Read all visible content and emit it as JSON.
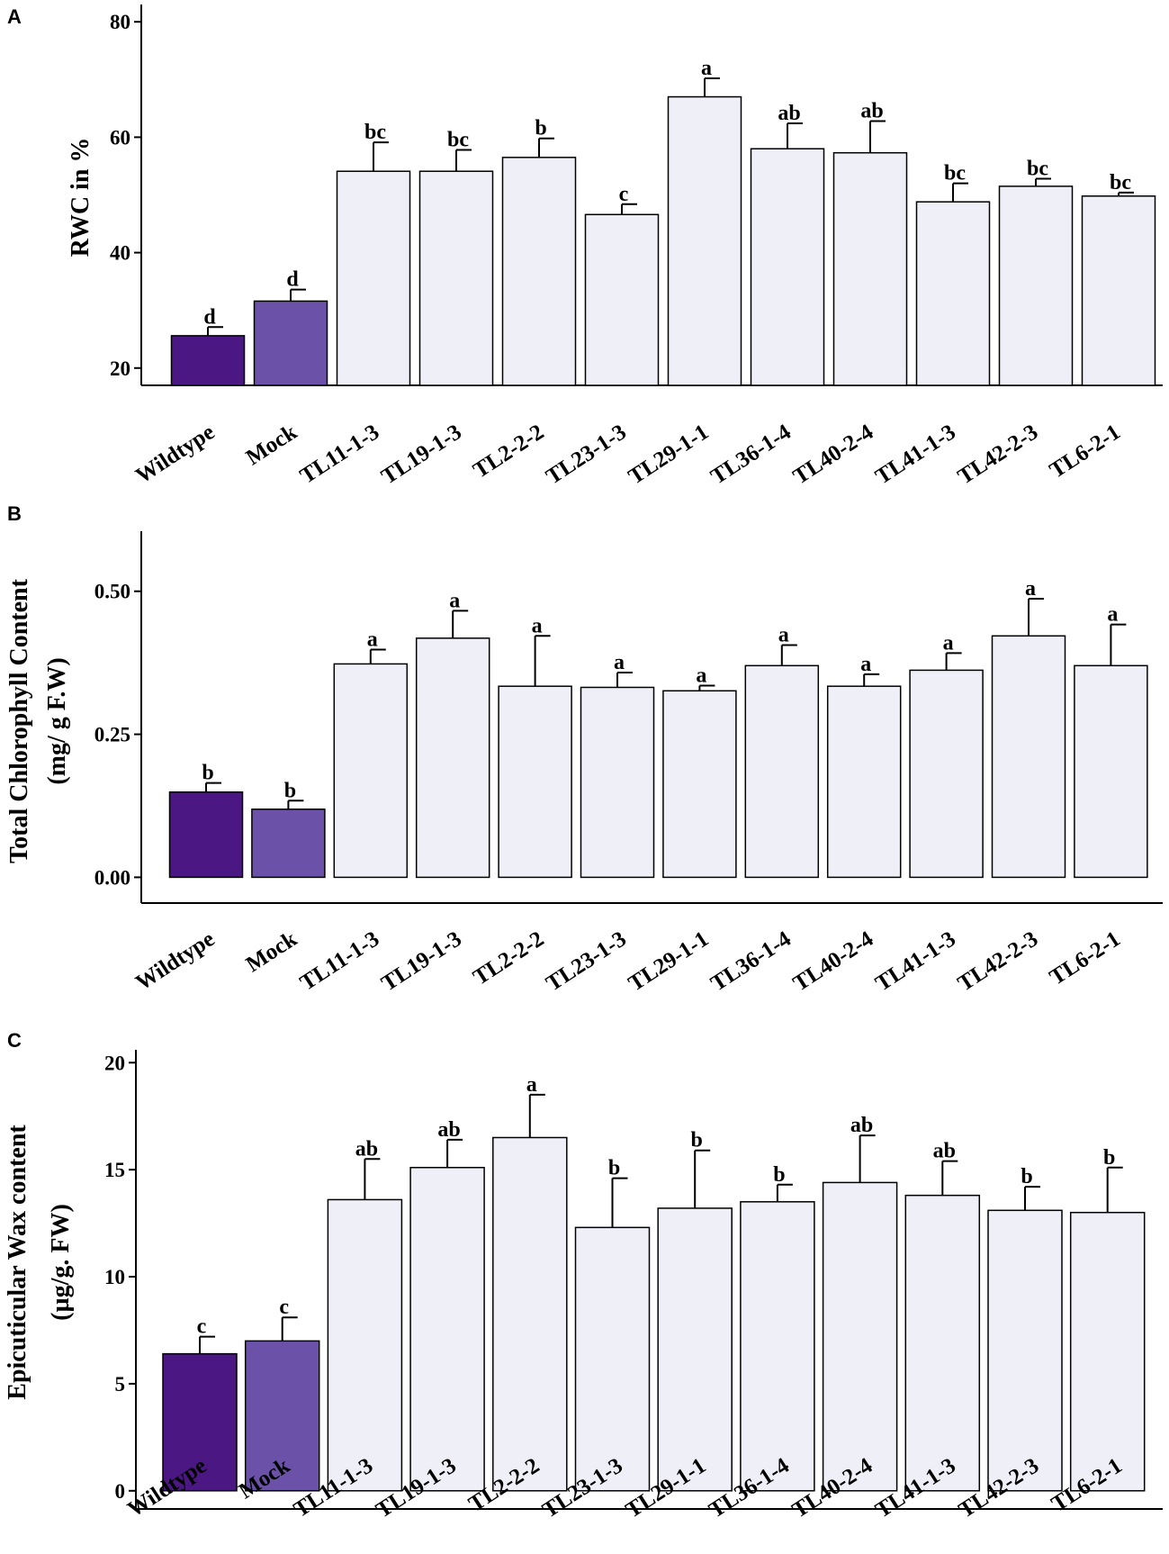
{
  "chart_data": [
    {
      "panel": "A",
      "type": "bar",
      "ylabel": "RWC in %",
      "ylim": [
        17,
        83
      ],
      "yticks": [
        20,
        40,
        60,
        80
      ],
      "tick_format": "int",
      "categories": [
        "Wildtype",
        "Mock",
        "TL11-1-3",
        "TL19-1-3",
        "TL2-2-2",
        "TL23-1-3",
        "TL29-1-1",
        "TL36-1-4",
        "TL40-2-4",
        "TL41-1-3",
        "TL42-2-3",
        "TL6-2-1"
      ],
      "values": [
        25.6,
        31.6,
        54.1,
        54.1,
        56.5,
        46.6,
        67.0,
        58.0,
        57.3,
        48.8,
        51.5,
        49.8
      ],
      "errors": [
        1.5,
        2.0,
        5.0,
        3.7,
        3.3,
        1.8,
        3.2,
        4.4,
        5.5,
        3.2,
        1.3,
        0.6
      ],
      "significance": [
        "d",
        "d",
        "bc",
        "bc",
        "b",
        "c",
        "a",
        "ab",
        "ab",
        "bc",
        "bc",
        "bc"
      ]
    },
    {
      "panel": "B",
      "type": "bar",
      "ylabel": "Total Chlorophyll Content",
      "ylabel2": "(mg/ g F.W)",
      "ylim": [
        -0.045,
        0.605
      ],
      "yticks": [
        0.0,
        0.25,
        0.5
      ],
      "tick_format": "fixed2",
      "categories": [
        "Wildtype",
        "Mock",
        "TL11-1-3",
        "TL19-1-3",
        "TL2-2-2",
        "TL23-1-3",
        "TL29-1-1",
        "TL36-1-4",
        "TL40-2-4",
        "TL41-1-3",
        "TL42-2-3",
        "TL6-2-1"
      ],
      "values": [
        0.149,
        0.119,
        0.373,
        0.418,
        0.334,
        0.332,
        0.326,
        0.37,
        0.334,
        0.362,
        0.422,
        0.37
      ],
      "errors": [
        0.016,
        0.015,
        0.025,
        0.048,
        0.088,
        0.026,
        0.009,
        0.036,
        0.021,
        0.03,
        0.065,
        0.072
      ],
      "significance": [
        "b",
        "b",
        "a",
        "a",
        "a",
        "a",
        "a",
        "a",
        "a",
        "a",
        "a",
        "a"
      ]
    },
    {
      "panel": "C",
      "type": "bar",
      "ylabel": "Epicuticular Wax content",
      "ylabel2": "(µg/g. FW)",
      "ylim": [
        -0.85,
        20.6
      ],
      "yticks": [
        0,
        5,
        10,
        15,
        20
      ],
      "tick_format": "int",
      "categories": [
        "Wildtype",
        "Mock",
        "TL11-1-3",
        "TL19-1-3",
        "TL2-2-2",
        "TL23-1-3",
        "TL29-1-1",
        "TL36-1-4",
        "TL40-2-4",
        "TL41-1-3",
        "TL42-2-3",
        "TL6-2-1"
      ],
      "values": [
        6.4,
        7.0,
        13.6,
        15.1,
        16.5,
        12.3,
        13.2,
        13.5,
        14.4,
        13.8,
        13.1,
        13.0
      ],
      "errors": [
        0.8,
        1.1,
        1.9,
        1.3,
        2.0,
        2.3,
        2.7,
        0.8,
        2.2,
        1.6,
        1.1,
        2.1
      ],
      "significance": [
        "c",
        "c",
        "ab",
        "ab",
        "a",
        "b",
        "b",
        "b",
        "ab",
        "ab",
        "b",
        "b"
      ]
    }
  ],
  "colors": {
    "wildtype": "#4b1782",
    "mock": "#6b52a8",
    "transgenic": "#efeff8",
    "axis": "#000000"
  }
}
